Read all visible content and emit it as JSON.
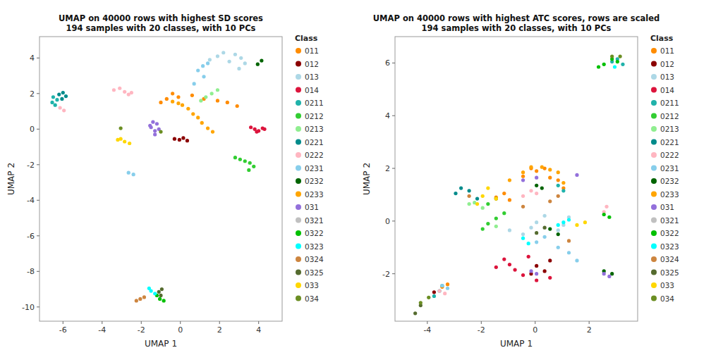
{
  "chart_data": [
    {
      "type": "scatter",
      "title": "UMAP on 40000 rows with highest SD scores\n194 samples with 20 classes, with 10 PCs",
      "x_label": "UMAP 1",
      "y_label": "UMAP 2",
      "legend_title": "Class",
      "xlim": [
        -7.2,
        5.2
      ],
      "ylim": [
        -10.8,
        5.2
      ],
      "xticks": [
        -6,
        -4,
        -2,
        0,
        2,
        4
      ],
      "yticks": [
        -10,
        -8,
        -6,
        -4,
        -2,
        0,
        2,
        4
      ],
      "grid": false,
      "legend": "right",
      "series": [
        {
          "name": "011",
          "color": "#FF8C00",
          "x": [
            -1.0,
            -0.7,
            -0.4,
            -0.1,
            0.6,
            1.2,
            1.9,
            2.4,
            2.9
          ],
          "values": [
            1.5,
            1.7,
            2.0,
            1.8,
            1.9,
            1.7,
            1.6,
            1.5,
            1.3
          ]
        },
        {
          "name": "012",
          "color": "#8B0000",
          "x": [
            -0.3,
            -0.05,
            0.15,
            0.35
          ],
          "values": [
            -0.55,
            -0.6,
            -0.5,
            -0.65
          ]
        },
        {
          "name": "013",
          "color": "#ADD8E6",
          "x": [
            1.5,
            1.9,
            2.2,
            2.5,
            2.8,
            3.1,
            3.3,
            3.0
          ],
          "values": [
            3.9,
            4.1,
            4.3,
            3.8,
            4.2,
            4.0,
            3.7,
            3.4
          ]
        },
        {
          "name": "014",
          "color": "#DC143C",
          "x": [
            3.6,
            3.8,
            4.0,
            4.2,
            3.9,
            4.3
          ],
          "values": [
            0.1,
            0.0,
            -0.1,
            0.05,
            -0.15,
            0.0
          ]
        },
        {
          "name": "0211",
          "color": "#20B2AA",
          "x": [
            -6.5,
            -6.3,
            -6.55,
            -6.4
          ],
          "values": [
            1.8,
            1.65,
            1.5,
            1.35
          ]
        },
        {
          "name": "0212",
          "color": "#32CD32",
          "x": [
            2.8,
            3.05,
            3.3,
            3.55,
            3.75,
            3.5
          ],
          "values": [
            -1.6,
            -1.7,
            -1.8,
            -1.9,
            -2.1,
            -2.3
          ]
        },
        {
          "name": "0213",
          "color": "#90EE90",
          "x": [
            1.05,
            1.3,
            1.6,
            1.9
          ],
          "values": [
            1.6,
            1.8,
            2.0,
            2.2
          ]
        },
        {
          "name": "0221",
          "color": "#008B8B",
          "x": [
            -6.2,
            -6.0,
            -5.85,
            -6.05
          ],
          "values": [
            1.95,
            2.05,
            1.85,
            1.7
          ]
        },
        {
          "name": "0222",
          "color": "#FFB6C1",
          "x": [
            -3.4,
            -3.1,
            -2.85,
            -2.65,
            -2.5,
            -6.15,
            -5.95
          ],
          "values": [
            2.2,
            2.3,
            2.1,
            1.95,
            2.05,
            1.2,
            1.05
          ]
        },
        {
          "name": "0231",
          "color": "#87CEEB",
          "x": [
            0.9,
            1.15,
            1.4,
            1.2,
            0.7,
            -2.4,
            -2.65
          ],
          "values": [
            3.3,
            3.55,
            3.7,
            2.95,
            2.55,
            -2.55,
            -2.45
          ]
        },
        {
          "name": "0232",
          "color": "#006400",
          "x": [
            4.15,
            3.95
          ],
          "values": [
            3.85,
            3.65
          ]
        },
        {
          "name": "0233",
          "color": "#FFA500",
          "x": [
            -0.4,
            -0.1,
            0.1,
            0.4,
            0.65,
            0.9,
            1.1,
            1.4,
            1.65
          ],
          "values": [
            1.55,
            1.45,
            1.35,
            1.15,
            0.85,
            0.65,
            0.35,
            0.05,
            -0.15
          ]
        },
        {
          "name": "031",
          "color": "#9370DB",
          "x": [
            -1.5,
            -1.3,
            -1.1,
            -1.3,
            -1.55,
            -1.2,
            -1.4
          ],
          "values": [
            0.1,
            -0.1,
            0.0,
            -0.3,
            0.2,
            0.3,
            0.4
          ]
        },
        {
          "name": "0321",
          "color": "#C0C0C0",
          "x": [],
          "values": []
        },
        {
          "name": "0322",
          "color": "#00C000",
          "x": [
            -1.05,
            -1.2,
            -0.85
          ],
          "values": [
            -9.55,
            -9.35,
            -9.65
          ]
        },
        {
          "name": "0323",
          "color": "#00FFFF",
          "x": [
            -1.5,
            -1.3,
            -1.6
          ],
          "values": [
            -9.1,
            -9.25,
            -8.95
          ]
        },
        {
          "name": "0324",
          "color": "#CD853F",
          "x": [
            -2.05,
            -1.85,
            -2.25
          ],
          "values": [
            -9.55,
            -9.45,
            -9.65
          ]
        },
        {
          "name": "0325",
          "color": "#556B2F",
          "x": [
            -1.1,
            -0.95,
            -1.0
          ],
          "values": [
            -9.15,
            -9.0,
            -9.35
          ]
        },
        {
          "name": "033",
          "color": "#FFD700",
          "x": [
            -3.05,
            -2.85,
            -2.6,
            -3.2
          ],
          "values": [
            -0.55,
            -0.7,
            -0.8,
            -0.6
          ]
        },
        {
          "name": "034",
          "color": "#6B8E23",
          "x": [
            -1.0,
            -3.05
          ],
          "values": [
            -0.15,
            0.05
          ]
        }
      ]
    },
    {
      "type": "scatter",
      "title": "UMAP on 40000 rows with highest ATC scores, rows are scaled\n194 samples with 20 classes, with 10 PCs",
      "x_label": "UMAP 1",
      "y_label": "UMAP 2",
      "legend_title": "Class",
      "xlim": [
        -5.2,
        3.8
      ],
      "ylim": [
        -3.8,
        7.0
      ],
      "xticks": [
        -4,
        -2,
        0,
        2
      ],
      "yticks": [
        -2,
        0,
        2,
        4,
        6
      ],
      "grid": false,
      "legend": "right",
      "series": [
        {
          "name": "011",
          "color": "#FF8C00",
          "x": [
            -3.45,
            -3.25,
            -0.45,
            -0.15,
            0.05,
            0.35,
            0.55,
            0.85,
            1.05,
            -1.45,
            -1.15,
            -0.95
          ],
          "values": [
            -2.5,
            -2.4,
            1.7,
            2.0,
            1.9,
            2.0,
            1.65,
            1.55,
            1.25,
            0.9,
            1.05,
            0.8
          ]
        },
        {
          "name": "012",
          "color": "#8B0000",
          "x": [
            -3.75,
            0.05,
            0.35,
            -0.15,
            0.55
          ],
          "values": [
            -2.7,
            -1.7,
            -1.9,
            -2.0,
            -1.5
          ]
        },
        {
          "name": "013",
          "color": "#ADD8E6",
          "x": [
            -0.45,
            -0.15,
            0.05,
            0.35,
            -0.95,
            0.85,
            1.05,
            1.25
          ],
          "values": [
            -0.5,
            -0.25,
            -0.05,
            0.2,
            -0.35,
            -0.35,
            -0.15,
            0.15
          ]
        },
        {
          "name": "014",
          "color": "#DC143C",
          "x": [
            -1.15,
            -0.95,
            -0.75,
            -0.45,
            -0.25,
            -1.45,
            0.05,
            0.55
          ],
          "values": [
            -1.45,
            -1.65,
            -1.85,
            -2.05,
            -1.35,
            -1.75,
            -2.25,
            -2.15
          ]
        },
        {
          "name": "0211",
          "color": "#20B2AA",
          "x": [
            -3.75,
            -3.55,
            -3.45,
            0.85,
            1.05,
            2.85,
            3.05,
            3.25
          ],
          "values": [
            -2.85,
            -2.65,
            -2.45,
            1.35,
            1.15,
            6.05,
            6.15,
            5.95
          ]
        },
        {
          "name": "0212",
          "color": "#32CD32",
          "x": [
            -1.95,
            -1.75,
            -1.45,
            -1.15,
            -1.75,
            -1.45
          ],
          "values": [
            -0.3,
            -0.1,
            0.1,
            0.3,
            0.65,
            0.85
          ]
        },
        {
          "name": "0213",
          "color": "#90EE90",
          "x": [
            -1.45,
            -1.95,
            -2.25,
            -2.45
          ],
          "values": [
            -0.2,
            0.5,
            0.7,
            0.65
          ]
        },
        {
          "name": "0221",
          "color": "#008B8B",
          "x": [
            -2.95,
            -2.75,
            -2.45,
            -2.15
          ],
          "values": [
            1.05,
            1.25,
            1.15,
            0.85
          ]
        },
        {
          "name": "0222",
          "color": "#FFB6C1",
          "x": [
            -3.55,
            -3.35,
            -0.45,
            -0.15,
            0.05,
            2.55,
            2.65
          ],
          "values": [
            -2.65,
            -2.75,
            0.95,
            1.15,
            1.05,
            0.35,
            0.55
          ]
        },
        {
          "name": "0231",
          "color": "#87CEEB",
          "x": [
            -3.45,
            -3.25,
            0.05,
            0.35,
            0.85,
            1.25,
            1.55
          ],
          "values": [
            -2.45,
            -2.55,
            -0.8,
            -0.6,
            -1.0,
            -1.2,
            -1.5
          ]
        },
        {
          "name": "0232",
          "color": "#006400",
          "x": [
            0.05,
            0.25,
            2.55,
            2.85,
            0.55,
            0.85
          ],
          "values": [
            1.35,
            1.25,
            -1.9,
            -2.0,
            -0.3,
            -0.5
          ]
        },
        {
          "name": "0233",
          "color": "#FFA500",
          "x": [
            -0.95,
            -0.45,
            -0.15,
            0.25,
            0.55,
            0.85,
            1.05
          ],
          "values": [
            1.55,
            1.85,
            2.05,
            2.05,
            1.95,
            1.85,
            1.45
          ]
        },
        {
          "name": "031",
          "color": "#9370DB",
          "x": [
            -0.45,
            0.05,
            1.55,
            -0.15,
            0.05,
            2.55,
            2.75
          ],
          "values": [
            1.55,
            1.65,
            1.75,
            -1.9,
            -2.0,
            -2.0,
            -2.1
          ]
        },
        {
          "name": "0321",
          "color": "#C0C0C0",
          "x": [],
          "values": []
        },
        {
          "name": "0322",
          "color": "#00C000",
          "x": [
            2.85,
            3.05,
            2.55,
            2.55,
            2.75,
            2.35
          ],
          "values": [
            6.15,
            6.05,
            5.95,
            0.25,
            0.15,
            5.85
          ]
        },
        {
          "name": "0323",
          "color": "#00FFFF",
          "x": [
            2.95,
            0.85,
            1.05,
            1.25,
            -0.45,
            -0.25
          ],
          "values": [
            5.85,
            -0.15,
            -0.05,
            0.05,
            -0.65,
            -0.85
          ]
        },
        {
          "name": "0324",
          "color": "#CD853F",
          "x": [
            -1.45,
            -2.45,
            0.55,
            0.85,
            -0.45,
            1.25
          ],
          "values": [
            0.85,
            0.95,
            0.75,
            0.95,
            0.55,
            -0.75
          ]
        },
        {
          "name": "0325",
          "color": "#556B2F",
          "x": [
            -4.25,
            -4.45,
            0.05,
            0.35
          ],
          "values": [
            -3.2,
            -3.5,
            -0.45,
            -0.25
          ]
        },
        {
          "name": "033",
          "color": "#FFD700",
          "x": [
            -1.95,
            -1.75,
            -1.45,
            -2.15,
            1.55,
            1.85
          ],
          "values": [
            0.95,
            1.25,
            0.85,
            0.65,
            -0.15,
            -0.05
          ]
        },
        {
          "name": "034",
          "color": "#6B8E23",
          "x": [
            -4.25,
            -3.95,
            2.85,
            3.15
          ],
          "values": [
            -3.1,
            -2.9,
            6.25,
            6.25
          ]
        }
      ]
    }
  ]
}
